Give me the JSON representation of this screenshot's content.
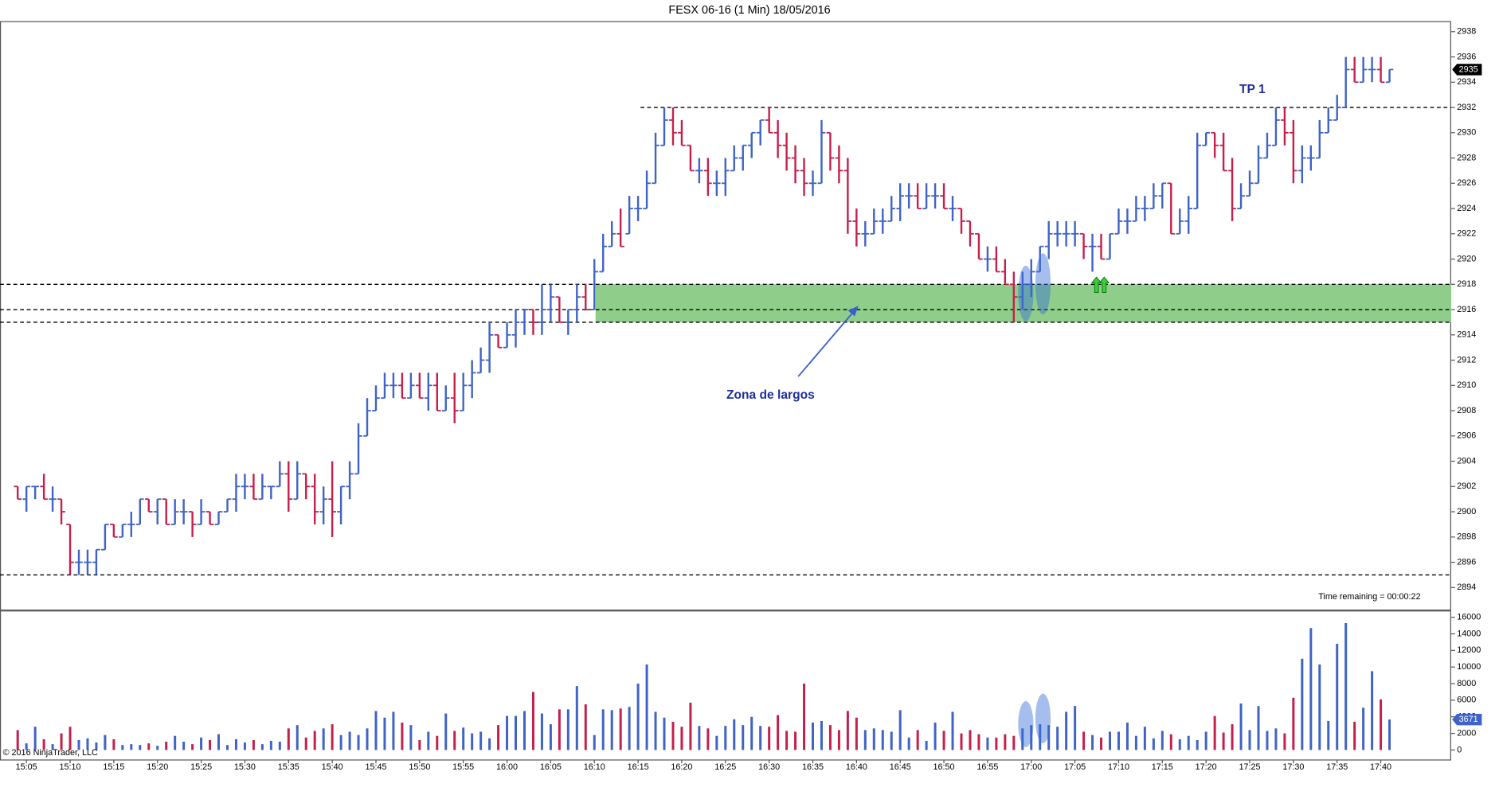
{
  "chart_data": {
    "type": "ohlc",
    "title": "FESX 06-16 (1 Min)  18/05/2016",
    "annotations": {
      "target": "TP 1",
      "zone_label": "Zona de largos",
      "timer": "Time remaining = 00:00:22",
      "copyright": "© 2016 NinjaTrader, LLC"
    },
    "up_color": "#3f63c6",
    "down_color": "#c4204c",
    "levels": [
      2932,
      2918,
      2916,
      2915,
      2895
    ],
    "zone": [
      2915,
      2918
    ],
    "zone_color": "#8fcd8a",
    "ylim": [
      2892.26,
      2938.83
    ],
    "yticks": [
      2894,
      2896,
      2898,
      2900,
      2902,
      2904,
      2906,
      2908,
      2910,
      2912,
      2914,
      2916,
      2918,
      2920,
      2922,
      2924,
      2926,
      2928,
      2930,
      2932,
      2934,
      2936,
      2938
    ],
    "volume_ylim": [
      -1150,
      16700
    ],
    "volume_yticks": [
      0,
      2000,
      4000,
      6000,
      8000,
      10000,
      12000,
      14000,
      16000
    ],
    "categories": [
      null,
      "15:05",
      null,
      null,
      null,
      null,
      "15:10",
      null,
      null,
      null,
      null,
      "15:15",
      null,
      null,
      null,
      null,
      "15:20",
      null,
      null,
      null,
      null,
      "15:25",
      null,
      null,
      null,
      null,
      "15:30",
      null,
      null,
      null,
      null,
      "15:35",
      null,
      null,
      null,
      null,
      "15:40",
      null,
      null,
      null,
      null,
      "15:45",
      null,
      null,
      null,
      null,
      "15:50",
      null,
      null,
      null,
      null,
      "15:55",
      null,
      null,
      null,
      null,
      "16:00",
      null,
      null,
      null,
      null,
      "16:05",
      null,
      null,
      null,
      null,
      "16:10",
      null,
      null,
      null,
      null,
      "16:15",
      null,
      null,
      null,
      null,
      "16:20",
      null,
      null,
      null,
      null,
      "16:25",
      null,
      null,
      null,
      null,
      "16:30",
      null,
      null,
      null,
      null,
      "16:35",
      null,
      null,
      null,
      null,
      "16:40",
      null,
      null,
      null,
      null,
      "16:45",
      null,
      null,
      null,
      null,
      "16:50",
      null,
      null,
      null,
      null,
      "16:55",
      null,
      null,
      null,
      null,
      "17:00",
      null,
      null,
      null,
      null,
      "17:05",
      null,
      null,
      null,
      null,
      "17:10",
      null,
      null,
      null,
      null,
      "17:15",
      null,
      null,
      null,
      null,
      "17:20",
      null,
      null,
      null,
      null,
      "17:25",
      null,
      null,
      null,
      null,
      "17:30",
      null,
      null,
      null,
      null,
      "17:35",
      null,
      null,
      null,
      null,
      "17:40",
      null
    ],
    "ohlc": [
      [
        2902,
        2902,
        2901,
        2901
      ],
      [
        2901,
        2902,
        2900,
        2902
      ],
      [
        2902,
        2902,
        2901,
        2902
      ],
      [
        2902,
        2903,
        2901,
        2901
      ],
      [
        2901,
        2902,
        2900,
        2901
      ],
      [
        2901,
        2901,
        2899,
        2900
      ],
      [
        2899,
        2899,
        2895,
        2896
      ],
      [
        2896,
        2897,
        2895,
        2896
      ],
      [
        2896,
        2897,
        2895,
        2896
      ],
      [
        2896,
        2897,
        2895,
        2897
      ],
      [
        2897,
        2899,
        2897,
        2899
      ],
      [
        2899,
        2899,
        2898,
        2898
      ],
      [
        2898,
        2899,
        2898,
        2899
      ],
      [
        2899,
        2900,
        2898,
        2899
      ],
      [
        2899,
        2901,
        2899,
        2901
      ],
      [
        2901,
        2901,
        2900,
        2900
      ],
      [
        2900,
        2901,
        2899,
        2901
      ],
      [
        2901,
        2901,
        2899,
        2899
      ],
      [
        2899,
        2901,
        2899,
        2900
      ],
      [
        2900,
        2901,
        2899,
        2900
      ],
      [
        2900,
        2900,
        2898,
        2899
      ],
      [
        2899,
        2901,
        2899,
        2900
      ],
      [
        2900,
        2900,
        2899,
        2899
      ],
      [
        2899,
        2900,
        2899,
        2900
      ],
      [
        2900,
        2901,
        2900,
        2901
      ],
      [
        2901,
        2903,
        2900,
        2902
      ],
      [
        2902,
        2903,
        2901,
        2902
      ],
      [
        2902,
        2903,
        2901,
        2901
      ],
      [
        2901,
        2903,
        2901,
        2902
      ],
      [
        2902,
        2902,
        2901,
        2902
      ],
      [
        2902,
        2904,
        2902,
        2903
      ],
      [
        2903,
        2904,
        2900,
        2901
      ],
      [
        2901,
        2904,
        2901,
        2903
      ],
      [
        2903,
        2903,
        2901,
        2902
      ],
      [
        2902,
        2903,
        2899,
        2900
      ],
      [
        2900,
        2902,
        2899,
        2901
      ],
      [
        2901,
        2904,
        2898,
        2900
      ],
      [
        2900,
        2902,
        2899,
        2902
      ],
      [
        2902,
        2904,
        2901,
        2903
      ],
      [
        2903,
        2907,
        2903,
        2906
      ],
      [
        2906,
        2909,
        2906,
        2908
      ],
      [
        2908,
        2910,
        2908,
        2909
      ],
      [
        2909,
        2911,
        2909,
        2910
      ],
      [
        2910,
        2911,
        2909,
        2910
      ],
      [
        2910,
        2911,
        2909,
        2909
      ],
      [
        2909,
        2911,
        2909,
        2910
      ],
      [
        2910,
        2911,
        2909,
        2909
      ],
      [
        2909,
        2911,
        2908,
        2910
      ],
      [
        2910,
        2911,
        2908,
        2908
      ],
      [
        2908,
        2910,
        2908,
        2909
      ],
      [
        2909,
        2911,
        2907,
        2908
      ],
      [
        2908,
        2911,
        2908,
        2910
      ],
      [
        2910,
        2912,
        2909,
        2911
      ],
      [
        2911,
        2913,
        2911,
        2912
      ],
      [
        2912,
        2915,
        2911,
        2914
      ],
      [
        2914,
        2914,
        2913,
        2913
      ],
      [
        2913,
        2915,
        2913,
        2914
      ],
      [
        2914,
        2916,
        2913,
        2915
      ],
      [
        2915,
        2916,
        2914,
        2916
      ],
      [
        2916,
        2916,
        2914,
        2915
      ],
      [
        2915,
        2918,
        2914,
        2916
      ],
      [
        2916,
        2918,
        2915,
        2917
      ],
      [
        2917,
        2917,
        2915,
        2915
      ],
      [
        2915,
        2916,
        2914,
        2916
      ],
      [
        2916,
        2918,
        2915,
        2917
      ],
      [
        2917,
        2918,
        2916,
        2916
      ],
      [
        2916,
        2920,
        2916,
        2919
      ],
      [
        2919,
        2922,
        2919,
        2921
      ],
      [
        2921,
        2923,
        2921,
        2922
      ],
      [
        2922,
        2924,
        2921,
        2921
      ],
      [
        2922,
        2925,
        2922,
        2924
      ],
      [
        2924,
        2925,
        2923,
        2924
      ],
      [
        2924,
        2927,
        2924,
        2926
      ],
      [
        2926,
        2930,
        2926,
        2929
      ],
      [
        2929,
        2932,
        2929,
        2931
      ],
      [
        2931,
        2932,
        2929,
        2930
      ],
      [
        2930,
        2931,
        2929,
        2929
      ],
      [
        2929,
        2929,
        2927,
        2927
      ],
      [
        2927,
        2928,
        2926,
        2927
      ],
      [
        2927,
        2928,
        2925,
        2926
      ],
      [
        2926,
        2927,
        2925,
        2926
      ],
      [
        2926,
        2928,
        2925,
        2927
      ],
      [
        2927,
        2929,
        2927,
        2928
      ],
      [
        2928,
        2929,
        2927,
        2929
      ],
      [
        2929,
        2930,
        2928,
        2930
      ],
      [
        2930,
        2931,
        2929,
        2931
      ],
      [
        2931,
        2932,
        2930,
        2930
      ],
      [
        2930,
        2931,
        2928,
        2929
      ],
      [
        2929,
        2930,
        2927,
        2928
      ],
      [
        2928,
        2929,
        2926,
        2927
      ],
      [
        2927,
        2928,
        2925,
        2926
      ],
      [
        2926,
        2927,
        2925,
        2926
      ],
      [
        2926,
        2931,
        2926,
        2930
      ],
      [
        2930,
        2930,
        2927,
        2928
      ],
      [
        2928,
        2929,
        2926,
        2927
      ],
      [
        2927,
        2928,
        2922,
        2923
      ],
      [
        2923,
        2924,
        2921,
        2922
      ],
      [
        2922,
        2923,
        2921,
        2922
      ],
      [
        2922,
        2924,
        2922,
        2923
      ],
      [
        2923,
        2924,
        2922,
        2923
      ],
      [
        2923,
        2925,
        2923,
        2924
      ],
      [
        2924,
        2926,
        2923,
        2925
      ],
      [
        2925,
        2926,
        2924,
        2925
      ],
      [
        2925,
        2926,
        2924,
        2924
      ],
      [
        2924,
        2926,
        2924,
        2925
      ],
      [
        2925,
        2926,
        2924,
        2925
      ],
      [
        2925,
        2926,
        2924,
        2924
      ],
      [
        2924,
        2925,
        2923,
        2924
      ],
      [
        2924,
        2924,
        2922,
        2923
      ],
      [
        2923,
        2923,
        2921,
        2922
      ],
      [
        2922,
        2922,
        2920,
        2920
      ],
      [
        2920,
        2921,
        2919,
        2920
      ],
      [
        2920,
        2921,
        2919,
        2919
      ],
      [
        2919,
        2920,
        2918,
        2918
      ],
      [
        2918,
        2919,
        2915,
        2917
      ],
      [
        2917,
        2919,
        2916,
        2918
      ],
      [
        2918,
        2920,
        2917,
        2919
      ],
      [
        2919,
        2921,
        2919,
        2921
      ],
      [
        2921,
        2923,
        2920,
        2922
      ],
      [
        2922,
        2923,
        2921,
        2922
      ],
      [
        2922,
        2923,
        2921,
        2922
      ],
      [
        2922,
        2923,
        2921,
        2922
      ],
      [
        2922,
        2922,
        2920,
        2921
      ],
      [
        2921,
        2922,
        2919,
        2921
      ],
      [
        2921,
        2922,
        2920,
        2920
      ],
      [
        2920,
        2922,
        2920,
        2922
      ],
      [
        2922,
        2924,
        2922,
        2923
      ],
      [
        2923,
        2924,
        2922,
        2923
      ],
      [
        2923,
        2925,
        2923,
        2924
      ],
      [
        2924,
        2925,
        2923,
        2924
      ],
      [
        2924,
        2926,
        2924,
        2925
      ],
      [
        2925,
        2926,
        2924,
        2926
      ],
      [
        2926,
        2926,
        2922,
        2922
      ],
      [
        2922,
        2924,
        2922,
        2923
      ],
      [
        2923,
        2925,
        2922,
        2924
      ],
      [
        2924,
        2930,
        2924,
        2929
      ],
      [
        2929,
        2930,
        2929,
        2930
      ],
      [
        2930,
        2930,
        2928,
        2929
      ],
      [
        2929,
        2930,
        2927,
        2927
      ],
      [
        2927,
        2928,
        2923,
        2924
      ],
      [
        2924,
        2926,
        2924,
        2925
      ],
      [
        2925,
        2927,
        2925,
        2926
      ],
      [
        2926,
        2929,
        2926,
        2928
      ],
      [
        2928,
        2930,
        2928,
        2929
      ],
      [
        2929,
        2932,
        2929,
        2931
      ],
      [
        2931,
        2932,
        2929,
        2930
      ],
      [
        2930,
        2931,
        2926,
        2927
      ],
      [
        2927,
        2929,
        2926,
        2928
      ],
      [
        2928,
        2929,
        2927,
        2928
      ],
      [
        2928,
        2931,
        2928,
        2930
      ],
      [
        2930,
        2932,
        2930,
        2931
      ],
      [
        2931,
        2933,
        2931,
        2932
      ],
      [
        2932,
        2936,
        2932,
        2935
      ],
      [
        2935,
        2936,
        2934,
        2934
      ],
      [
        2934,
        2936,
        2934,
        2935
      ],
      [
        2935,
        2936,
        2934,
        2935
      ],
      [
        2935,
        2936,
        2934,
        2934
      ],
      [
        2934,
        2935,
        2934,
        2935
      ]
    ],
    "volume": [
      2400,
      800,
      2800,
      1300,
      700,
      2000,
      2800,
      1200,
      1400,
      900,
      1800,
      1300,
      600,
      700,
      600,
      800,
      500,
      1000,
      1700,
      1000,
      700,
      1500,
      1200,
      1900,
      600,
      1300,
      900,
      1200,
      700,
      1100,
      1000,
      2600,
      3000,
      1500,
      2300,
      2600,
      3100,
      1800,
      2200,
      1800,
      2600,
      4700,
      3900,
      4600,
      3300,
      3000,
      1200,
      2200,
      1700,
      4400,
      2300,
      2700,
      2000,
      2200,
      1400,
      3000,
      4100,
      4100,
      4700,
      7000,
      4400,
      3100,
      4900,
      4900,
      7700,
      5500,
      1800,
      4900,
      4800,
      5000,
      5200,
      8000,
      10300,
      4600,
      3900,
      3400,
      2800,
      5700,
      2900,
      2600,
      1700,
      2900,
      3700,
      3000,
      4000,
      2900,
      2800,
      4200,
      2300,
      2200,
      8000,
      3300,
      3500,
      3000,
      2400,
      4700,
      3900,
      2400,
      2600,
      2400,
      2200,
      4800,
      1500,
      2400,
      1100,
      3300,
      2300,
      4600,
      2000,
      2400,
      1900,
      1500,
      1500,
      1900,
      1700,
      2600,
      3000,
      3100,
      3000,
      2800,
      4600,
      5300,
      2200,
      1800,
      1500,
      2200,
      2200,
      3300,
      1700,
      2800,
      1400,
      2300,
      1900,
      1300,
      1700,
      1200,
      2200,
      4100,
      2100,
      3100,
      5600,
      2400,
      5300,
      2300,
      2600,
      2000,
      6300,
      11000,
      14700,
      10300,
      3500,
      12800,
      15300,
      3400,
      5100,
      9500,
      6100,
      3671
    ]
  }
}
